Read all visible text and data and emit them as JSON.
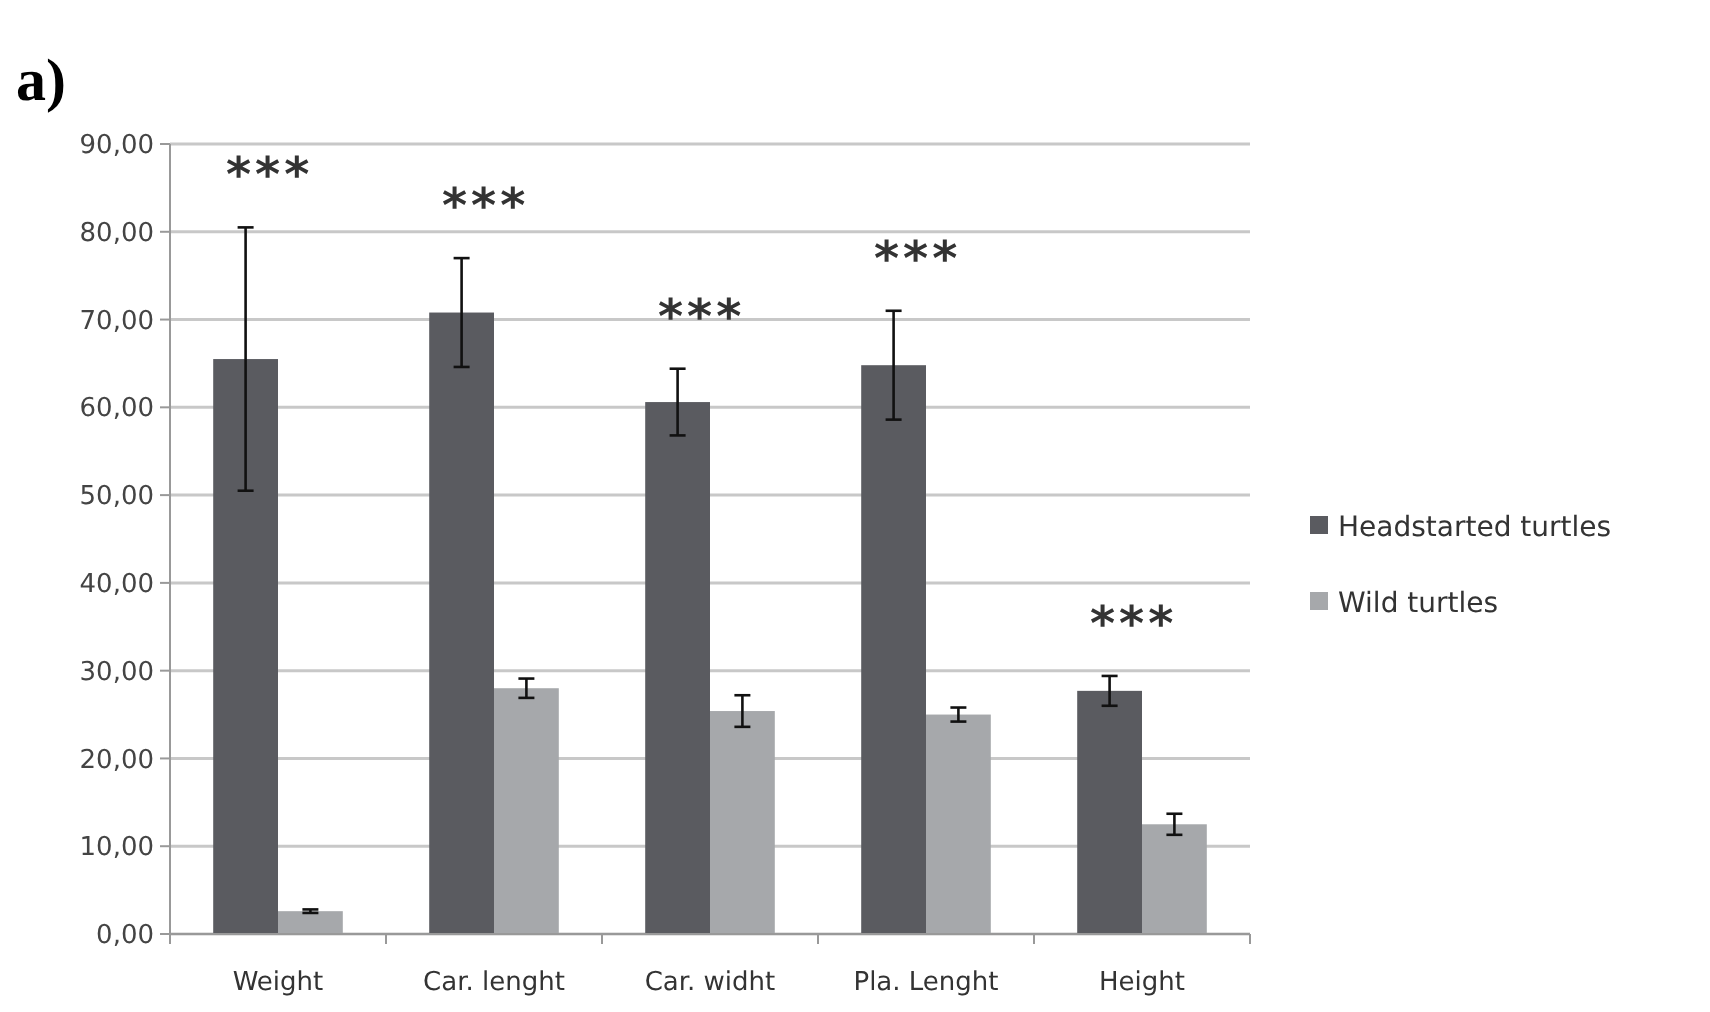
{
  "chart_data": {
    "type": "bar",
    "title": "a)",
    "categories": [
      "Weight",
      "Car. lenght",
      "Car. widht",
      "Pla. Lenght",
      "Height"
    ],
    "series": [
      {
        "name": "Headstarted turtles",
        "color": "#5a5b60",
        "values": [
          65.5,
          70.8,
          60.6,
          64.8,
          27.7
        ],
        "errors": [
          15,
          6.2,
          3.8,
          6.2,
          1.7
        ]
      },
      {
        "name": "Wild turtles",
        "color": "#a6a8ab",
        "values": [
          2.6,
          28.0,
          25.4,
          25.0,
          12.5
        ],
        "errors": [
          0.2,
          1.1,
          1.8,
          0.8,
          1.2
        ]
      }
    ],
    "ylim": [
      0,
      90
    ],
    "yticks": [
      {
        "value": 0,
        "label": "0,00"
      },
      {
        "value": 10,
        "label": "10,00"
      },
      {
        "value": 20,
        "label": "20,00"
      },
      {
        "value": 30,
        "label": "30,00"
      },
      {
        "value": 40,
        "label": "40,00"
      },
      {
        "value": 50,
        "label": "50,00"
      },
      {
        "value": 60,
        "label": "60,00"
      },
      {
        "value": 70,
        "label": "70,00"
      },
      {
        "value": 80,
        "label": "80,00"
      },
      {
        "value": 90,
        "label": "90,00"
      }
    ],
    "grid": "y",
    "legend": "right",
    "annotations": [
      "***",
      "***",
      "***",
      "***",
      "***"
    ]
  }
}
